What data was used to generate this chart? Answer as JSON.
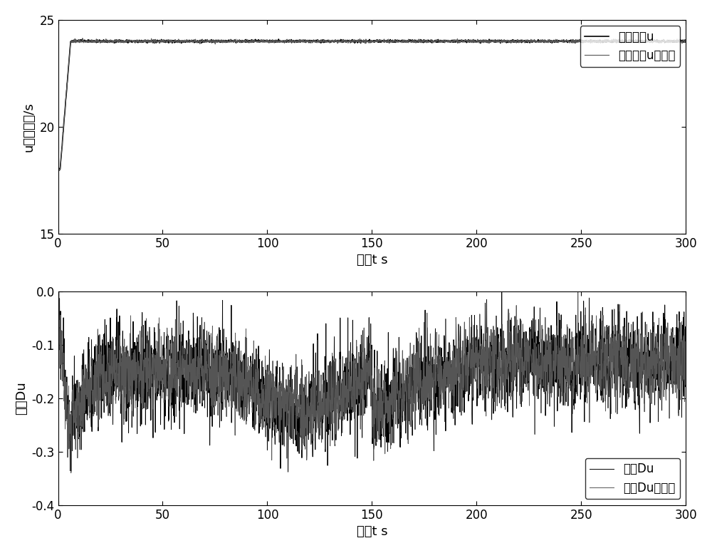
{
  "top_plot": {
    "ylim": [
      15,
      25
    ],
    "xlim": [
      0,
      300
    ],
    "yticks": [
      15,
      20,
      25
    ],
    "xticks": [
      0,
      50,
      100,
      150,
      200,
      250,
      300
    ],
    "ylabel": "u估计値。/s",
    "xlabel": "时间t s",
    "legend": [
      "纵向速度u",
      "纵向速度u估计値"
    ],
    "line1_color": "#000000",
    "line2_color": "#555555",
    "noise_amplitude": 0.03
  },
  "bottom_plot": {
    "ylim": [
      -0.4,
      0
    ],
    "xlim": [
      0,
      300
    ],
    "yticks": [
      0,
      -0.1,
      -0.2,
      -0.3,
      -0.4
    ],
    "xticks": [
      0,
      50,
      100,
      150,
      200,
      250,
      300
    ],
    "ylabel": "扰动Du",
    "xlabel": "时间t s",
    "legend": [
      "扰动Du",
      "扰动Du估计値"
    ],
    "line1_color": "#000000",
    "line2_color": "#555555",
    "noise_amplitude": 0.045
  },
  "figure_bgcolor": "#ffffff",
  "axes_bgcolor": "#ffffff",
  "font_size": 13,
  "legend_font_size": 12,
  "tick_font_size": 12
}
